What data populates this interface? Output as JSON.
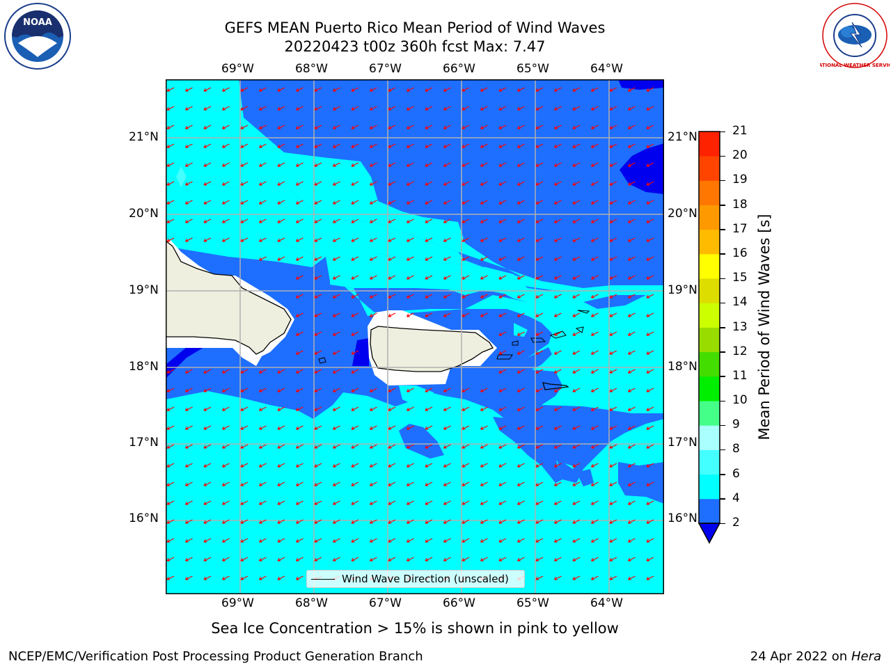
{
  "header": {
    "title_line1": "GEFS MEAN Puerto Rico Mean Period of Wind Waves",
    "title_line2": "20220423 t00z 360h fcst   Max: 7.47"
  },
  "logos": {
    "noaa_text": "NOAA",
    "nws_text": "NATIONAL WEATHER SERVICE"
  },
  "map": {
    "lon_labels": [
      "69°W",
      "68°W",
      "67°W",
      "66°W",
      "65°W",
      "64°W"
    ],
    "lat_labels": [
      "21°N",
      "20°N",
      "19°N",
      "18°N",
      "17°N",
      "16°N"
    ],
    "legend_label": "Wind Wave Direction (unscaled)",
    "colors": {
      "band_2_4": "#1e6eff",
      "band_4_6": "#00ffff",
      "band_below_2": "#0000ee",
      "land": "#efefdf",
      "arrow": "#ff0000"
    }
  },
  "colorbar": {
    "label": "Mean Period of Wind Waves [s]",
    "ticks": [
      "2",
      "4",
      "6",
      "8",
      "9",
      "10",
      "11",
      "12",
      "13",
      "14",
      "15",
      "16",
      "17",
      "18",
      "19",
      "20",
      "21"
    ],
    "colors": [
      "#1e6eff",
      "#00ffff",
      "#44ffff",
      "#aaffff",
      "#44ff88",
      "#00ee00",
      "#44dd00",
      "#99dd00",
      "#ccff00",
      "#dddd00",
      "#ffff00",
      "#ffbb00",
      "#ff9900",
      "#ff7700",
      "#ff4400",
      "#ff2200"
    ]
  },
  "footer": {
    "ice_note": "Sea Ice Concentration > 15% is shown in pink to yellow",
    "branch": "NCEP/EMC/Verification Post Processing Product Generation Branch",
    "date": "24 Apr 2022 on ",
    "machine": "Hera"
  }
}
